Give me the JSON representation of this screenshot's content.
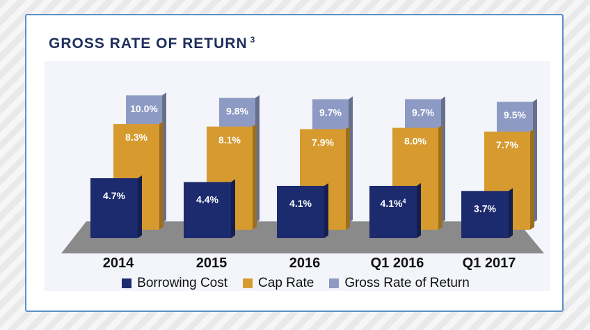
{
  "title": "GROSS RATE OF RETURN",
  "title_sup": "3",
  "colors": {
    "borrowing": "#1c2a6e",
    "cap": "#d69a2f",
    "gross": "#8d9bc4",
    "floor": "#7e7e7e"
  },
  "chart_data": {
    "type": "bar",
    "title": "GROSS RATE OF RETURN",
    "categories": [
      "2014",
      "2015",
      "2016",
      "Q1 2016",
      "Q1 2017"
    ],
    "series": [
      {
        "name": "Borrowing Cost",
        "values": [
          4.7,
          4.4,
          4.1,
          4.1,
          3.7
        ],
        "labels": [
          "4.7%",
          "4.4%",
          "4.1%",
          "4.1%",
          "3.7%"
        ]
      },
      {
        "name": "Cap Rate",
        "values": [
          8.3,
          8.1,
          7.9,
          8.0,
          7.7
        ],
        "labels": [
          "8.3%",
          "8.1%",
          "7.9%",
          "8.0%",
          "7.7%"
        ]
      },
      {
        "name": "Gross Rate of Return",
        "values": [
          10.0,
          9.8,
          9.7,
          9.7,
          9.5
        ],
        "labels": [
          "10.0%",
          "9.8%",
          "9.7%",
          "9.7%",
          "9.5%"
        ]
      }
    ],
    "label_superscripts": {
      "series": 0,
      "index": 3,
      "text": "4"
    },
    "xlabel": "",
    "ylabel": "",
    "ylim": [
      0,
      10
    ],
    "legend": "bottom"
  },
  "legend": {
    "items": [
      "Borrowing Cost",
      "Cap Rate",
      "Gross Rate of Return"
    ]
  }
}
